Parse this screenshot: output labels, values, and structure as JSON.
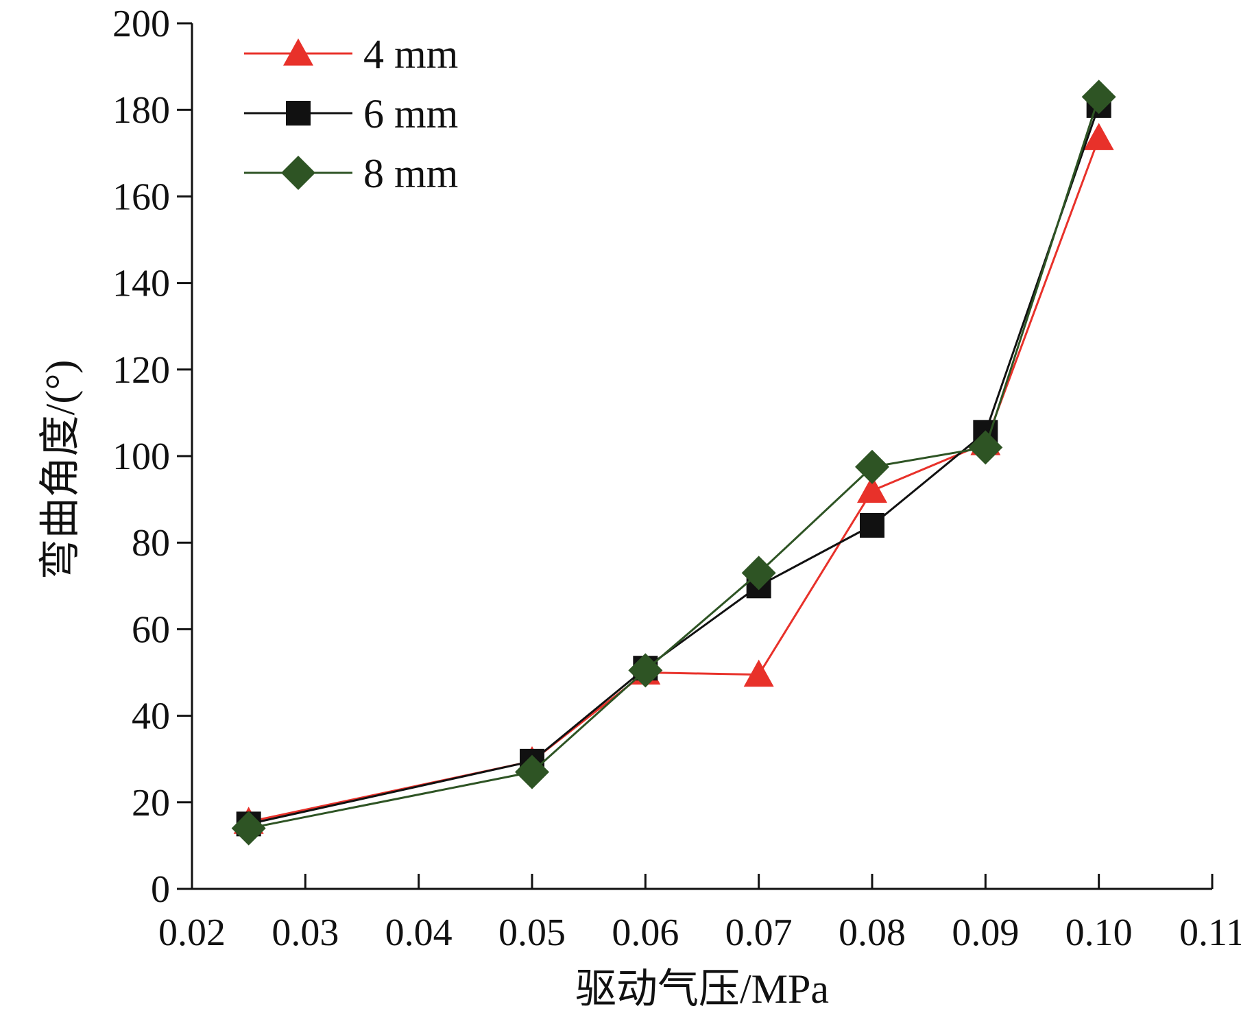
{
  "chart_data": {
    "type": "line",
    "title": "",
    "xlabel": "驱动气压/MPa",
    "ylabel": "弯曲角度/(°)",
    "xlim": [
      0.02,
      0.11
    ],
    "ylim": [
      0,
      200
    ],
    "xticks": [
      "0.02",
      "0.03",
      "0.04",
      "0.05",
      "0.06",
      "0.07",
      "0.08",
      "0.09",
      "0.10",
      "0.11"
    ],
    "yticks": [
      "0",
      "20",
      "40",
      "60",
      "80",
      "100",
      "120",
      "140",
      "160",
      "180",
      "200"
    ],
    "grid": false,
    "legend_position": "top-left",
    "x": [
      0.025,
      0.05,
      0.06,
      0.07,
      0.08,
      0.09,
      0.1
    ],
    "series": [
      {
        "name": "4 mm",
        "marker": "triangle",
        "color": "#e8312a",
        "values": [
          15.5,
          29.5,
          50.0,
          49.5,
          92.0,
          103.0,
          173.5
        ]
      },
      {
        "name": "6 mm",
        "marker": "square",
        "color": "#111111",
        "values": [
          15.0,
          29.5,
          51.0,
          70.0,
          84.0,
          105.5,
          181.0
        ]
      },
      {
        "name": "8 mm",
        "marker": "diamond",
        "color": "#2e5424",
        "values": [
          14.0,
          27.0,
          50.5,
          73.0,
          97.5,
          102.0,
          183.0
        ]
      }
    ]
  }
}
